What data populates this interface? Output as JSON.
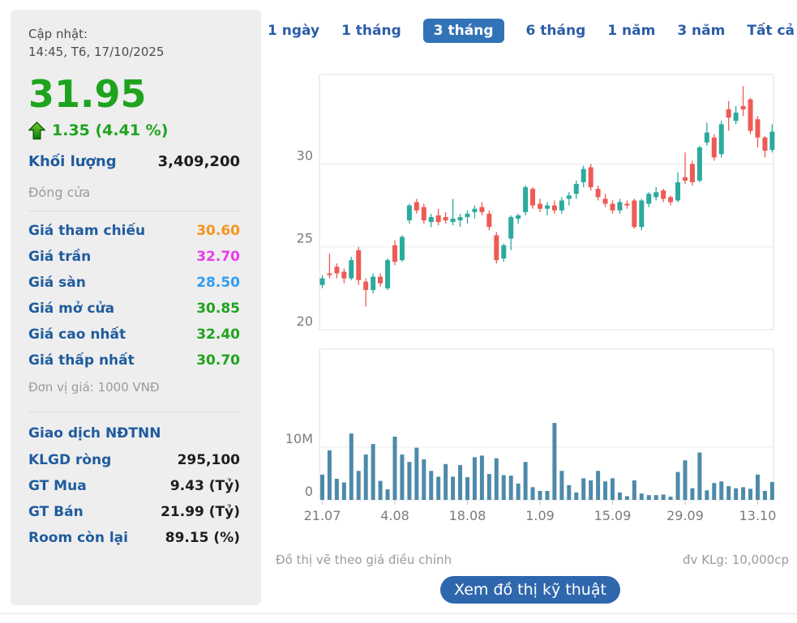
{
  "panel": {
    "updated_label": "Cập nhật:",
    "updated_time": "14:45, T6, 17/10/2025",
    "price": "31.95",
    "change": "1.35 (4.41 %)",
    "volume_label": "Khối lượng",
    "volume_value": "3,409,200",
    "session_label": "Đóng cửa",
    "price_rows": [
      {
        "label": "Giá tham chiếu",
        "value": "30.60",
        "color": "#f7941d"
      },
      {
        "label": "Giá trần",
        "value": "32.70",
        "color": "#e93ce9"
      },
      {
        "label": "Giá sàn",
        "value": "28.50",
        "color": "#2f9ff0"
      },
      {
        "label": "Giá mở cửa",
        "value": "30.85",
        "color": "#1ea31e"
      },
      {
        "label": "Giá cao nhất",
        "value": "32.40",
        "color": "#1ea31e"
      },
      {
        "label": "Giá thấp nhất",
        "value": "30.70",
        "color": "#1ea31e"
      }
    ],
    "unit_note": "Đơn vị giá: 1000 VNĐ",
    "foreign_header": "Giao dịch NĐTNN",
    "foreign_rows": [
      {
        "label": "KLGD ròng",
        "value": "295,100"
      },
      {
        "label": "GT Mua",
        "value": "9.43 (Tỷ)"
      },
      {
        "label": "GT Bán",
        "value": "21.99 (Tỷ)"
      },
      {
        "label": "Room còn lại",
        "value": "89.15 (%)"
      }
    ]
  },
  "tabs": {
    "items": [
      {
        "label": "1 ngày",
        "active": false
      },
      {
        "label": "1 tháng",
        "active": false
      },
      {
        "label": "3 tháng",
        "active": true
      },
      {
        "label": "6 tháng",
        "active": false
      },
      {
        "label": "1 năm",
        "active": false
      },
      {
        "label": "3 năm",
        "active": false
      },
      {
        "label": "Tất cả",
        "active": false
      }
    ]
  },
  "footer": {
    "left_note": "Đồ thị vẽ theo giá điều chỉnh",
    "right_note": "đv KLg: 10,000cp",
    "button_label": "Xem đồ thị kỹ thuật"
  },
  "colors": {
    "up": "#2caa9e",
    "down": "#ee5a54",
    "volume_bar": "#4d8aaa",
    "axis_text": "#7b7b7b",
    "gridline": "#ececec",
    "plot_border": "#e0e0e0",
    "icon_cyan": "#27c3da",
    "icon_dark_blue": "#2b3f9e"
  },
  "chart_data": {
    "type": "candlestick_with_volume",
    "x_tick_labels": [
      "21.07",
      "4.08",
      "18.08",
      "1.09",
      "15.09",
      "29.09",
      "13.10"
    ],
    "x_tick_indices": [
      0,
      10,
      20,
      30,
      40,
      50,
      60
    ],
    "price_axis": {
      "tick_labels": [
        "30",
        "25",
        "20"
      ],
      "tick_values": [
        30,
        25,
        20
      ],
      "range": [
        20,
        35.4
      ]
    },
    "volume_axis": {
      "tick_labels": [
        "10M",
        "0"
      ],
      "tick_values": [
        10,
        0
      ],
      "range": [
        0,
        28.6
      ],
      "unit_millions": true
    },
    "grid": true,
    "candles_ohlc": [
      [
        22.7,
        23.3,
        22.5,
        23.1
      ],
      [
        23.4,
        24.6,
        23.1,
        23.3
      ],
      [
        23.8,
        24.0,
        23.1,
        23.4
      ],
      [
        23.5,
        23.7,
        22.8,
        23.1
      ],
      [
        23.1,
        24.4,
        23.0,
        24.2
      ],
      [
        24.8,
        25.0,
        22.7,
        23.0
      ],
      [
        22.9,
        23.1,
        21.4,
        22.4
      ],
      [
        22.4,
        23.4,
        22.2,
        23.2
      ],
      [
        23.2,
        23.4,
        22.6,
        22.8
      ],
      [
        22.5,
        24.3,
        22.4,
        24.2
      ],
      [
        25.1,
        25.4,
        23.9,
        24.1
      ],
      [
        24.2,
        25.7,
        24.1,
        25.6
      ],
      [
        26.6,
        27.6,
        26.4,
        27.5
      ],
      [
        27.7,
        27.9,
        27.0,
        27.2
      ],
      [
        27.4,
        27.6,
        26.4,
        26.6
      ],
      [
        26.5,
        27.0,
        26.2,
        26.8
      ],
      [
        26.9,
        27.3,
        26.3,
        26.5
      ],
      [
        26.8,
        27.1,
        26.4,
        26.6
      ],
      [
        26.5,
        27.9,
        26.3,
        26.7
      ],
      [
        26.6,
        27.0,
        26.2,
        26.8
      ],
      [
        26.8,
        27.2,
        26.4,
        27.0
      ],
      [
        27.1,
        27.5,
        26.7,
        27.3
      ],
      [
        27.4,
        27.7,
        26.9,
        27.1
      ],
      [
        27.0,
        27.2,
        26.0,
        26.2
      ],
      [
        25.7,
        25.9,
        24.0,
        24.2
      ],
      [
        24.3,
        25.2,
        24.1,
        25.1
      ],
      [
        25.5,
        26.9,
        24.8,
        26.8
      ],
      [
        26.7,
        27.0,
        26.4,
        26.9
      ],
      [
        27.1,
        28.7,
        26.9,
        28.6
      ],
      [
        28.5,
        28.6,
        27.3,
        27.5
      ],
      [
        27.6,
        27.9,
        27.1,
        27.3
      ],
      [
        27.3,
        27.7,
        26.9,
        27.5
      ],
      [
        27.5,
        27.8,
        27.0,
        27.2
      ],
      [
        27.2,
        28.0,
        27.0,
        27.8
      ],
      [
        27.9,
        28.3,
        27.5,
        28.1
      ],
      [
        28.2,
        29.0,
        27.9,
        28.8
      ],
      [
        28.9,
        29.9,
        28.6,
        29.7
      ],
      [
        29.8,
        30.0,
        28.4,
        28.6
      ],
      [
        28.5,
        28.7,
        27.8,
        28.0
      ],
      [
        27.9,
        28.2,
        27.4,
        27.6
      ],
      [
        27.6,
        27.8,
        27.0,
        27.2
      ],
      [
        27.2,
        27.9,
        27.0,
        27.7
      ],
      [
        27.6,
        27.8,
        27.3,
        27.5
      ],
      [
        27.8,
        27.9,
        26.1,
        26.2
      ],
      [
        26.2,
        27.9,
        26.0,
        27.8
      ],
      [
        27.6,
        28.3,
        27.4,
        28.2
      ],
      [
        28.0,
        28.6,
        27.8,
        28.3
      ],
      [
        28.4,
        28.5,
        27.7,
        27.9
      ],
      [
        28.0,
        28.1,
        27.5,
        27.7
      ],
      [
        27.8,
        29.5,
        27.7,
        28.9
      ],
      [
        29.2,
        30.7,
        28.8,
        29.0
      ],
      [
        30.0,
        30.2,
        28.7,
        28.9
      ],
      [
        29.0,
        31.1,
        28.9,
        31.0
      ],
      [
        31.3,
        32.5,
        31.1,
        31.9
      ],
      [
        31.6,
        31.8,
        30.2,
        30.4
      ],
      [
        30.6,
        32.6,
        30.4,
        32.4
      ],
      [
        33.3,
        33.8,
        32.0,
        32.8
      ],
      [
        32.6,
        33.5,
        32.4,
        33.1
      ],
      [
        33.5,
        34.7,
        32.9,
        33.3
      ],
      [
        33.9,
        34.0,
        31.8,
        32.0
      ],
      [
        32.7,
        32.9,
        31.0,
        31.6
      ],
      [
        31.6,
        31.7,
        30.4,
        30.8
      ],
      [
        30.85,
        32.4,
        30.7,
        31.95
      ]
    ],
    "volumes_millions": [
      4.8,
      9.4,
      4.0,
      3.3,
      12.6,
      5.5,
      8.6,
      10.6,
      3.6,
      2.0,
      12.0,
      8.6,
      7.2,
      9.9,
      7.7,
      5.5,
      4.4,
      6.8,
      4.4,
      6.6,
      4.3,
      8.1,
      8.4,
      4.9,
      7.9,
      4.7,
      4.6,
      3.1,
      7.2,
      2.4,
      1.7,
      1.7,
      14.6,
      5.5,
      2.8,
      1.4,
      4.1,
      3.7,
      5.5,
      3.5,
      4.1,
      1.4,
      0.7,
      3.7,
      1.2,
      0.9,
      0.9,
      1.0,
      0.6,
      5.3,
      7.5,
      2.2,
      9.0,
      1.8,
      3.2,
      3.5,
      2.6,
      2.2,
      2.4,
      2.1,
      4.8,
      1.7,
      3.4
    ],
    "footnote_left": "Đồ thị vẽ theo giá điều chỉnh",
    "footnote_right": "đv KLg: 10,000cp"
  }
}
